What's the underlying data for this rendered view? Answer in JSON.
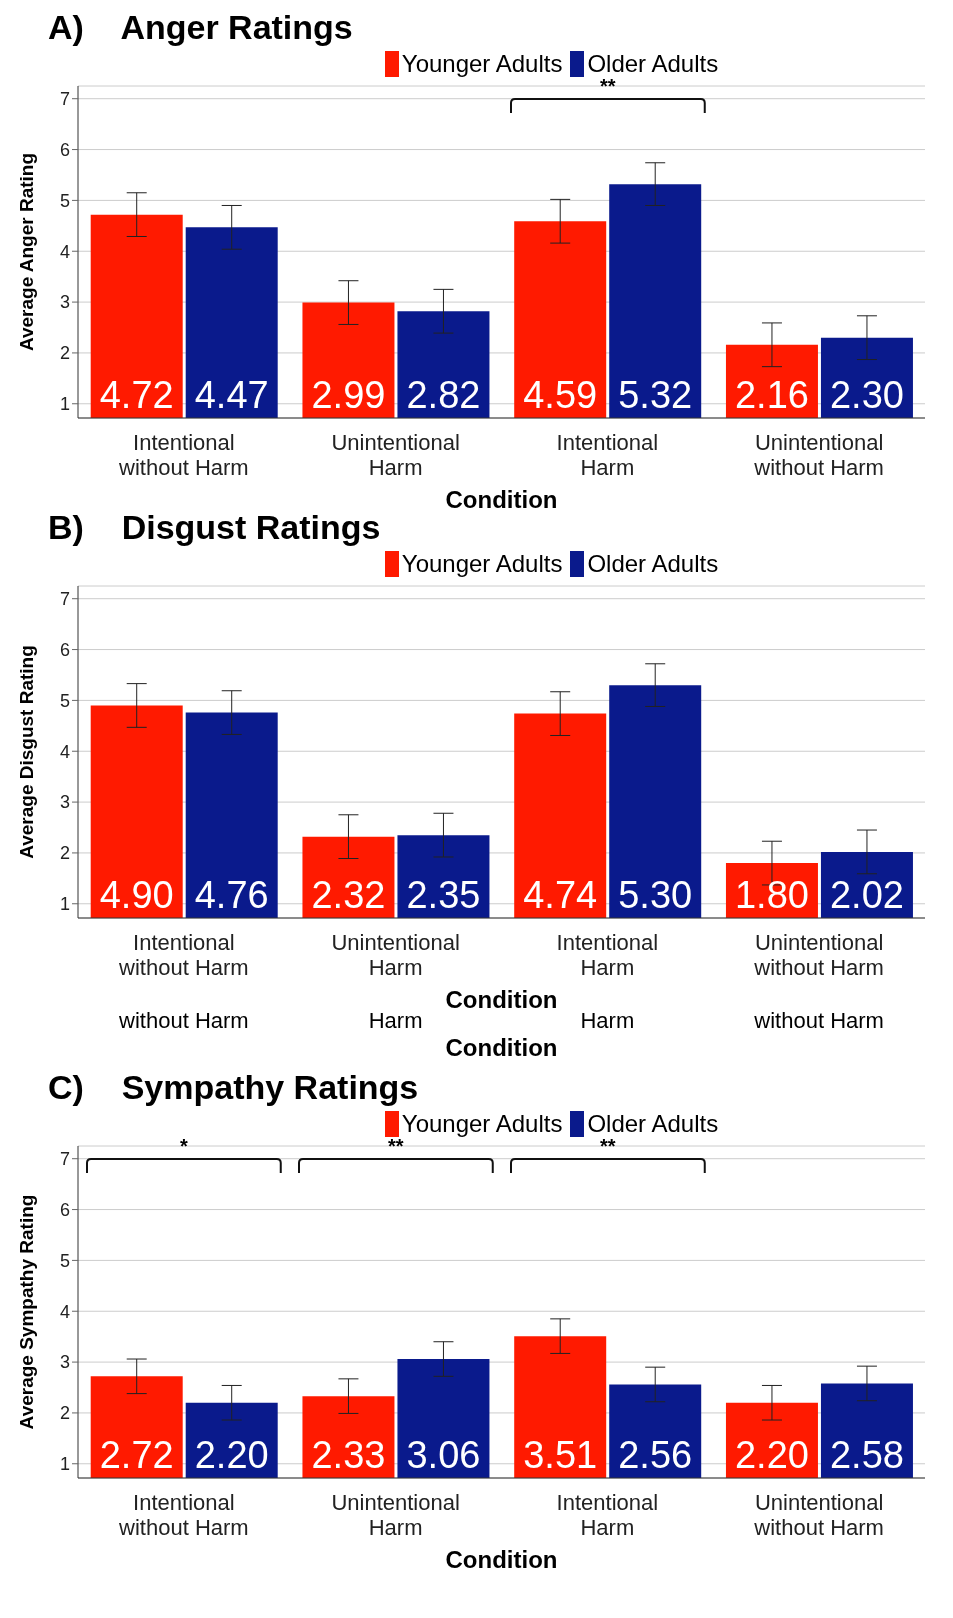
{
  "chart_data": [
    {
      "type": "bar",
      "title": "A)    Anger Ratings",
      "xlabel": "Condition",
      "ylabel": "Average Anger Rating",
      "categories": [
        "Intentional\nwithout Harm",
        "Unintentional\nHarm",
        "Intentional\nHarm",
        "Unintentional\nwithout Harm"
      ],
      "series": [
        {
          "name": "Younger Adults",
          "color": "#ff1a00",
          "values": [
            4.72,
            2.99,
            4.59,
            2.16
          ],
          "errors": [
            0.43,
            0.43,
            0.43,
            0.43
          ],
          "value_labels": [
            "4.72",
            "2.99",
            "4.59",
            "2.16"
          ]
        },
        {
          "name": "Older Adults",
          "color": "#0a1a8c",
          "values": [
            4.47,
            2.82,
            5.32,
            2.3
          ],
          "errors": [
            0.43,
            0.43,
            0.42,
            0.43
          ],
          "value_labels": [
            "4.47",
            "2.82",
            "5.32",
            "2.30"
          ]
        }
      ],
      "ylim": [
        0.72,
        7.25
      ],
      "yticks": [
        1,
        2,
        3,
        4,
        5,
        6,
        7
      ],
      "grid": "y",
      "legend": "top",
      "annotations": [
        "**"
      ]
    },
    {
      "type": "bar",
      "title": "B)    Disgust Ratings",
      "xlabel": "Condition",
      "ylabel": "Average Disgust Rating",
      "categories": [
        "Intentional\nwithout Harm",
        "Unintentional\nHarm",
        "Intentional\nHarm",
        "Unintentional\nwithout Harm"
      ],
      "series": [
        {
          "name": "Younger Adults",
          "color": "#ff1a00",
          "values": [
            4.9,
            2.32,
            4.74,
            1.8
          ],
          "errors": [
            0.43,
            0.43,
            0.43,
            0.43
          ],
          "value_labels": [
            "4.90",
            "2.32",
            "4.74",
            "1.80"
          ]
        },
        {
          "name": "Older Adults",
          "color": "#0a1a8c",
          "values": [
            4.76,
            2.35,
            5.3,
            2.02
          ],
          "errors": [
            0.43,
            0.43,
            0.42,
            0.43
          ],
          "value_labels": [
            "4.76",
            "2.35",
            "5.30",
            "2.02"
          ]
        }
      ],
      "ylim": [
        0.72,
        7.25
      ],
      "yticks": [
        1,
        2,
        3,
        4,
        5,
        6,
        7
      ],
      "grid": "y",
      "legend": "top",
      "annotations": [
        "without Harm",
        "Harm",
        "Harm",
        "without Harm",
        "Condition"
      ]
    },
    {
      "type": "bar",
      "title": "C)    Sympathy Ratings",
      "xlabel": "Condition",
      "ylabel": "Average Sympathy Rating",
      "categories": [
        "Intentional\nwithout Harm",
        "Unintentional\nHarm",
        "Intentional\nHarm",
        "Unintentional\nwithout Harm"
      ],
      "series": [
        {
          "name": "Younger Adults",
          "color": "#ff1a00",
          "values": [
            2.72,
            2.33,
            3.51,
            2.2
          ],
          "errors": [
            0.34,
            0.34,
            0.34,
            0.34
          ],
          "value_labels": [
            "2.72",
            "2.33",
            "3.51",
            "2.20"
          ]
        },
        {
          "name": "Older Adults",
          "color": "#0a1a8c",
          "values": [
            2.2,
            3.06,
            2.56,
            2.58
          ],
          "errors": [
            0.34,
            0.34,
            0.34,
            0.34
          ],
          "value_labels": [
            "2.20",
            "3.06",
            "2.56",
            "2.58"
          ]
        }
      ],
      "ylim": [
        0.72,
        7.25
      ],
      "yticks": [
        1,
        2,
        3,
        4,
        5,
        6,
        7
      ],
      "grid": "y",
      "legend": "top",
      "annotations": [
        "*",
        "**",
        "**"
      ]
    }
  ]
}
